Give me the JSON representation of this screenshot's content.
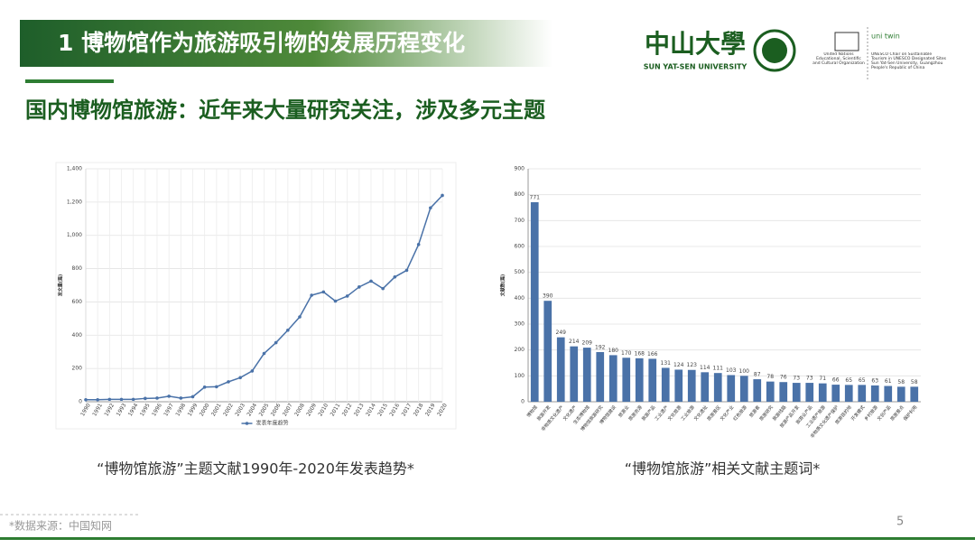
{
  "header": {
    "title": "1 博物馆作为旅游吸引物的发展历程变化",
    "subtitle": "国内博物馆旅游：近年来大量研究关注，涉及多元主题"
  },
  "logos": {
    "university_cn": "中山大學",
    "university_en": "SUN YAT-SEN UNIVERSITY",
    "unesco_org": "United Nations Educational, Scientific and Cultural Organization",
    "unitwin": "uni twin",
    "unesco_chair": "UNESCO Chair on Sustainable Tourism in UNESCO Designated Sites Sun Yat-Sen University, Guangzhou People's Republic of China"
  },
  "captions": [
    "“博物馆旅游”主题文献1990年-2020年发表趋势*",
    "“博物馆旅游”相关文献主题词*"
  ],
  "footer": {
    "source": "*数据来源：中国知网",
    "page": "5"
  },
  "chart_data": [
    {
      "type": "line",
      "y_label": "发文量(篇)",
      "categories": [
        "1990",
        "1991",
        "1992",
        "1993",
        "1994",
        "1995",
        "1996",
        "1997",
        "1998",
        "1999",
        "2000",
        "2001",
        "2002",
        "2003",
        "2004",
        "2005",
        "2006",
        "2007",
        "2008",
        "2009",
        "2010",
        "2011",
        "2012",
        "2013",
        "2014",
        "2015",
        "2016",
        "2017",
        "2018",
        "2019",
        "2020"
      ],
      "series": [
        {
          "name": "发表年度趋势",
          "color": "#4a72a8",
          "values": [
            12,
            12,
            14,
            14,
            14,
            20,
            22,
            33,
            22,
            30,
            88,
            90,
            120,
            145,
            185,
            290,
            355,
            430,
            510,
            640,
            660,
            605,
            635,
            690,
            725,
            680,
            750,
            790,
            945,
            1165,
            1240
          ]
        }
      ],
      "ylim": [
        0,
        1400
      ],
      "yticks": [
        0,
        200,
        400,
        600,
        800,
        {
          "value": 1000,
          "label": "1,000"
        },
        {
          "value": 1200,
          "label": "1,200"
        },
        {
          "value": 1400,
          "label": "1,400"
        }
      ],
      "grid": true,
      "legend": "bottom"
    },
    {
      "type": "bar",
      "y_label": "文献数(篇)",
      "color": "#4a72a8",
      "categories": [
        "博物馆",
        "旅游开发",
        "非物质文化遗产",
        "文化遗产",
        "生态博物馆",
        "博物馆旅游研究",
        "博物馆建设",
        "旅游业",
        "旅游资源",
        "旅游产品",
        "工业遗产",
        "文化旅游",
        "工业旅游",
        "文化遗址",
        "旅游景区",
        "文化产业",
        "红色旅游",
        "旅游者",
        "旅游研究",
        "旅游线路",
        "旅游产品开发",
        "旅游业产品",
        "工业遗产旅游",
        "非物质文化遗产保护",
        "旅游目的地",
        "开发模式",
        "乡村旅游",
        "文创产品",
        "旅游景点",
        "保护利用"
      ],
      "values": [
        771,
        390,
        249,
        214,
        209,
        192,
        180,
        170,
        168,
        166,
        131,
        124,
        123,
        114,
        111,
        103,
        100,
        87,
        78,
        76,
        73,
        73,
        71,
        66,
        65,
        65,
        63,
        61,
        58,
        58
      ],
      "ylim": [
        0,
        900
      ],
      "yticks": [
        0,
        100,
        200,
        300,
        400,
        500,
        600,
        700,
        800,
        900
      ],
      "grid": true
    }
  ]
}
